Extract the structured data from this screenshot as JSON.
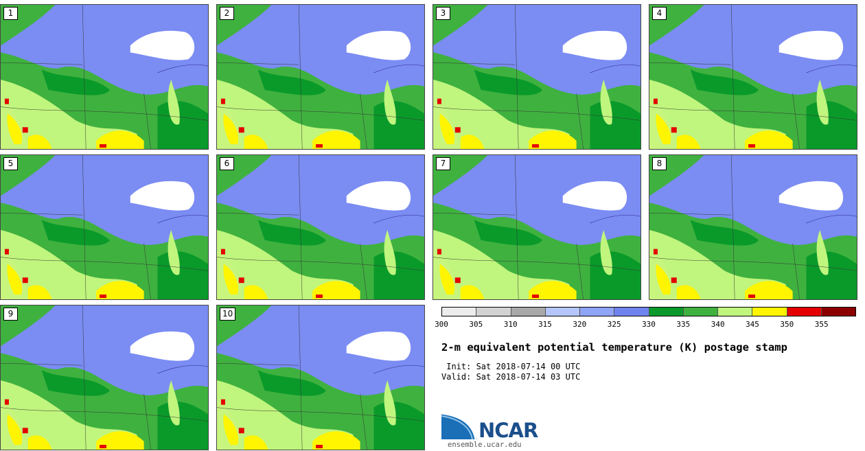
{
  "members": [
    "1",
    "2",
    "3",
    "4",
    "5",
    "6",
    "7",
    "8",
    "9",
    "10"
  ],
  "colorbar": {
    "ticks": [
      "300",
      "305",
      "310",
      "315",
      "320",
      "325",
      "330",
      "335",
      "340",
      "345",
      "350",
      "355"
    ],
    "colors": [
      "#ececec",
      "#d2d2d2",
      "#a9a9a9",
      "#b4c6fa",
      "#8fa3f7",
      "#6f83ef",
      "#0a9a2a",
      "#3fb13f",
      "#c0f57e",
      "#fff500",
      "#e50000",
      "#8b0000"
    ]
  },
  "title": "2-m equivalent potential temperature (K) postage stamp",
  "init_line": " Init: Sat 2018-07-14 00 UTC",
  "valid_line": "Valid: Sat 2018-07-14 03 UTC",
  "logo_text": "NCAR",
  "url": "ensemble.ucar.edu"
}
